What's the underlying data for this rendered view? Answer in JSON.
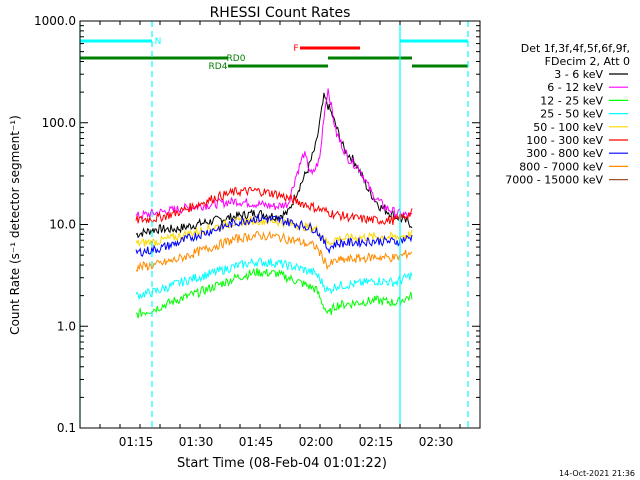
{
  "chart_data": {
    "type": "line",
    "title": "RHESSI Count Rates",
    "xlabel": "Start Time (08-Feb-04 01:01:22)",
    "ylabel": "Count Rate (s⁻¹ detector segment⁻¹)",
    "y_scale": "log",
    "ylim": [
      0.1,
      1000.0
    ],
    "xlim": [
      "01:01",
      "02:41"
    ],
    "x_ticks": [
      "01:15",
      "01:30",
      "01:45",
      "02:00",
      "02:15",
      "02:30"
    ],
    "y_ticks": [
      "0.1",
      "1.0",
      "10.0",
      "100.0",
      "1000.0"
    ],
    "grid": false,
    "legend_header": [
      "Det 1f,3f,4f,5f,6f,9f,",
      "FDecim 2, Att 0"
    ],
    "legend_position": "right",
    "series": [
      {
        "name": "3 - 6 keV",
        "color": "#000000",
        "x": [
          "01:15",
          "01:20",
          "01:25",
          "01:30",
          "01:35",
          "01:40",
          "01:45",
          "01:50",
          "01:53",
          "01:55",
          "01:58",
          "02:00",
          "02:02",
          "02:04",
          "02:07",
          "02:10",
          "02:13",
          "02:16",
          "02:20",
          "02:24"
        ],
        "y": [
          8,
          9,
          9,
          10,
          11,
          12,
          13,
          12,
          13,
          20,
          35,
          60,
          180,
          120,
          55,
          40,
          22,
          15,
          12,
          10
        ]
      },
      {
        "name": "6 - 12 keV",
        "color": "#ff00ff",
        "x": [
          "01:15",
          "01:20",
          "01:25",
          "01:30",
          "01:35",
          "01:40",
          "01:45",
          "01:50",
          "01:53",
          "01:55",
          "01:57",
          "01:59",
          "02:01",
          "02:02",
          "02:03",
          "02:05",
          "02:08",
          "02:11",
          "02:14",
          "02:17",
          "02:20",
          "02:24"
        ],
        "y": [
          12,
          13,
          14,
          15,
          16,
          17,
          16,
          15,
          16,
          30,
          50,
          30,
          45,
          120,
          220,
          80,
          45,
          35,
          20,
          15,
          13,
          12
        ]
      },
      {
        "name": "12 - 25 keV",
        "color": "#00ff00",
        "x": [
          "01:15",
          "01:20",
          "01:25",
          "01:30",
          "01:35",
          "01:40",
          "01:45",
          "01:50",
          "01:55",
          "02:00",
          "02:03",
          "02:05",
          "02:10",
          "02:15",
          "02:20",
          "02:24"
        ],
        "y": [
          1.3,
          1.5,
          1.8,
          2.1,
          2.5,
          3.0,
          3.4,
          3.3,
          2.8,
          2.3,
          1.3,
          1.6,
          1.7,
          1.8,
          1.7,
          2.0
        ]
      },
      {
        "name": "25 - 50 keV",
        "color": "#00ffff",
        "x": [
          "01:15",
          "01:20",
          "01:25",
          "01:30",
          "01:35",
          "01:40",
          "01:45",
          "01:50",
          "01:55",
          "02:00",
          "02:03",
          "02:05",
          "02:10",
          "02:15",
          "02:20",
          "02:24"
        ],
        "y": [
          2.0,
          2.2,
          2.6,
          3.0,
          3.4,
          3.9,
          4.3,
          4.2,
          3.8,
          3.3,
          2.2,
          2.5,
          2.6,
          2.8,
          2.7,
          3.2
        ]
      },
      {
        "name": "50 - 100 keV",
        "color": "#ffd700",
        "x": [
          "01:15",
          "01:20",
          "01:25",
          "01:30",
          "01:35",
          "01:40",
          "01:45",
          "01:50",
          "01:55",
          "02:00",
          "02:03",
          "02:05",
          "02:10",
          "02:15",
          "02:20",
          "02:24"
        ],
        "y": [
          6.5,
          6.8,
          7.5,
          8.5,
          9.5,
          10.5,
          11.0,
          10.8,
          10.0,
          9.0,
          6.5,
          7.2,
          7.4,
          7.6,
          7.5,
          8.0
        ]
      },
      {
        "name": "100 - 300 keV",
        "color": "#ff0000",
        "x": [
          "01:15",
          "01:20",
          "01:25",
          "01:30",
          "01:35",
          "01:40",
          "01:45",
          "01:50",
          "01:55",
          "02:00",
          "02:05",
          "02:10",
          "02:15",
          "02:20",
          "02:24"
        ],
        "y": [
          11,
          11.5,
          13,
          15.5,
          18.5,
          21,
          21.5,
          20,
          17,
          14.5,
          12.5,
          11.5,
          11,
          11,
          13
        ]
      },
      {
        "name": "300 - 800 keV",
        "color": "#0000ff",
        "x": [
          "01:15",
          "01:20",
          "01:25",
          "01:30",
          "01:35",
          "01:40",
          "01:45",
          "01:50",
          "01:55",
          "02:00",
          "02:03",
          "02:05",
          "02:10",
          "02:15",
          "02:20",
          "02:24"
        ],
        "y": [
          5.3,
          5.7,
          6.5,
          7.8,
          9.0,
          10.5,
          11.5,
          11.2,
          10.2,
          9.0,
          5.8,
          6.5,
          6.7,
          6.9,
          6.8,
          7.5
        ]
      },
      {
        "name": "800 - 7000 keV",
        "color": "#ff8c00",
        "x": [
          "01:15",
          "01:20",
          "01:25",
          "01:30",
          "01:35",
          "01:40",
          "01:45",
          "01:50",
          "01:55",
          "02:00",
          "02:03",
          "02:05",
          "02:10",
          "02:15",
          "02:20",
          "02:24"
        ],
        "y": [
          3.8,
          4.0,
          4.5,
          5.3,
          6.2,
          7.2,
          7.8,
          7.6,
          6.9,
          6.1,
          3.9,
          4.4,
          4.6,
          4.8,
          4.7,
          5.4
        ]
      },
      {
        "name": "7000 - 15000 keV",
        "color": "#a0522d",
        "x": [],
        "y": []
      }
    ],
    "annotations": [
      {
        "label": "N",
        "color": "#00ffff",
        "spans": [
          [
            "01:01",
            "01:19"
          ],
          [
            "02:21",
            "02:38"
          ]
        ]
      },
      {
        "label": "F",
        "color": "#ff0000",
        "spans": [
          [
            "01:56",
            "02:11"
          ]
        ]
      },
      {
        "label": "RD0",
        "color": "#008000",
        "spans": [
          [
            "01:01",
            "01:38"
          ],
          [
            "02:03",
            "02:24"
          ]
        ]
      },
      {
        "label": "RD4",
        "color": "#008000",
        "spans": [
          [
            "01:38",
            "02:03"
          ],
          [
            "02:24",
            "02:38"
          ]
        ]
      }
    ],
    "vertical_lines": [
      {
        "x": "01:01",
        "color": "#00ffff",
        "style": "solid"
      },
      {
        "x": "01:19",
        "color": "#00ffff",
        "style": "dashed"
      },
      {
        "x": "02:21",
        "color": "#00ffff",
        "style": "solid"
      },
      {
        "x": "02:38",
        "color": "#00ffff",
        "style": "dashed"
      }
    ]
  },
  "footer_timestamp": "14-Oct-2021 21:36"
}
